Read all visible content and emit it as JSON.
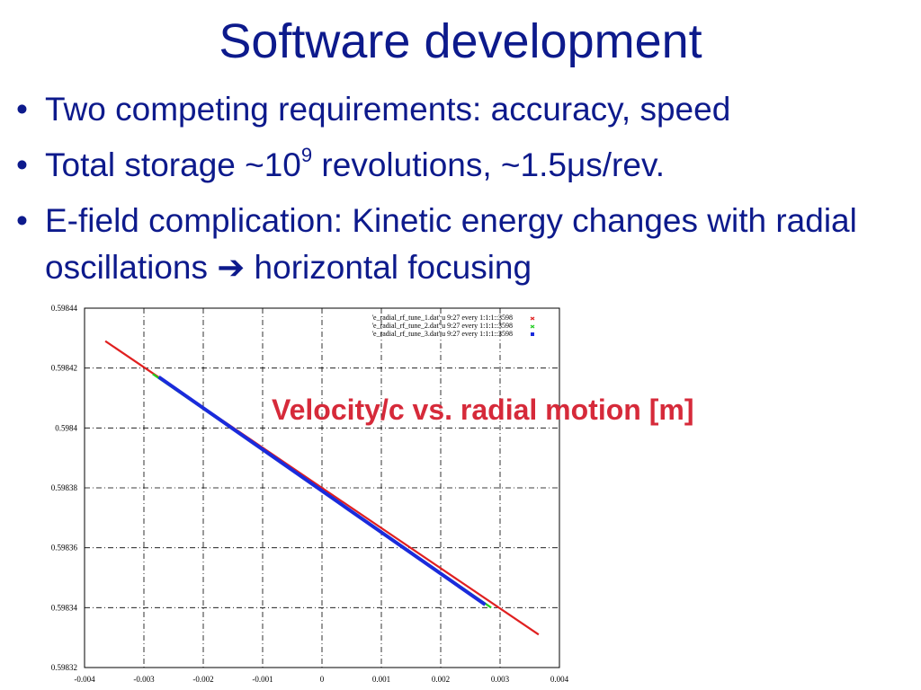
{
  "slide": {
    "title": "Software development",
    "bullets": [
      {
        "symbol": "•",
        "before": "Two competing requirements: accuracy, speed"
      },
      {
        "symbol": "•",
        "before": "Total storage ~10",
        "sup": "9",
        "after": " revolutions, ~1.5μs/rev."
      },
      {
        "symbol": "•",
        "before": "E-field complication:  Kinetic energy changes with radial oscillations ",
        "arrow": "➔",
        "after": " horizontal focusing"
      }
    ]
  },
  "annotation": "Velocity/c vs. radial motion [m]",
  "chart_data": {
    "type": "line",
    "x_ticks": [
      "-0.004",
      "-0.003",
      "-0.002",
      "-0.001",
      "0",
      "0.001",
      "0.002",
      "0.003",
      "0.004"
    ],
    "y_ticks": [
      "0.59832",
      "0.59834",
      "0.59836",
      "0.59838",
      "0.5984",
      "0.59842",
      "0.59844"
    ],
    "xlim": [
      -0.004,
      0.004
    ],
    "ylim": [
      0.59832,
      0.59844
    ],
    "grid": true,
    "legend_position": "top-right",
    "series": [
      {
        "name": "'e_radial_rf_tune_1.dat' u 9:27 every 1:1:1::3598",
        "color": "#e02020",
        "marker": "plus",
        "x": [
          -0.00365,
          0.00365
        ],
        "y": [
          0.598429,
          0.598331
        ]
      },
      {
        "name": "'e_radial_rf_tune_2.dat' u 9:27 every 1:1:1::3598",
        "color": "#20cc20",
        "marker": "cross",
        "x": [
          -0.00285,
          0.00285
        ],
        "y": [
          0.598418,
          0.59834
        ]
      },
      {
        "name": "'e_radial_rf_tune_3.dat' u 9:27 every 1:1:1::3598",
        "color": "#1a2bdc",
        "marker": "square",
        "x": [
          -0.00275,
          0.00275
        ],
        "y": [
          0.598417,
          0.598341
        ]
      }
    ]
  }
}
